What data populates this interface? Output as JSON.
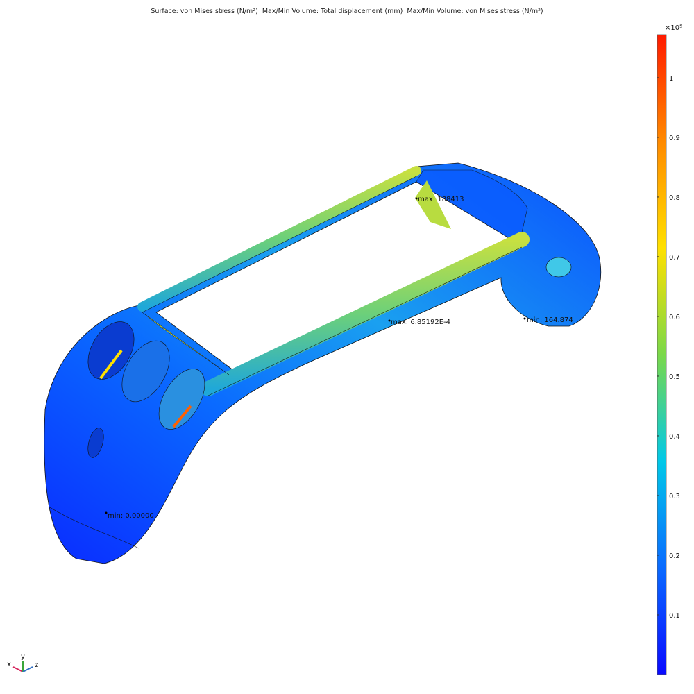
{
  "title": {
    "surface": "Surface: von Mises stress (N/m²)",
    "maxmin1": "Max/Min Volume: Total displacement (mm)",
    "maxmin2": "Max/Min Volume: von Mises stress (N/m²)"
  },
  "annotations": [
    {
      "id": "stress-max",
      "text": "max: 188413"
    },
    {
      "id": "disp-max",
      "text": "max: 6.85192E-4"
    },
    {
      "id": "stress-min",
      "text": "min: 164.874"
    },
    {
      "id": "disp-min",
      "text": "min: 0.00000"
    }
  ],
  "axes_triad": {
    "x": "x",
    "y": "y",
    "z": "z",
    "colors": {
      "x": "#d6245c",
      "y": "#3aa63a",
      "z": "#2f6fc4"
    }
  },
  "chart_data": {
    "type": "heatmap",
    "plot": "3D surface plot",
    "quantity": "von Mises stress (N/m²)",
    "colormap": "rainbow",
    "colorbar": {
      "exponent_label": "×10⁵",
      "range": [
        0,
        1.072
      ],
      "ticks": [
        0.1,
        0.2,
        0.3,
        0.4,
        0.5,
        0.6,
        0.7,
        0.8,
        0.9,
        1
      ],
      "tick_labels": [
        "0.1",
        "0.2",
        "0.3",
        "0.4",
        "0.5",
        "0.6",
        "0.7",
        "0.8",
        "0.9",
        "1"
      ],
      "colors": [
        "#0a0aff",
        "#0a6aff",
        "#00c8e8",
        "#7ad84a",
        "#ffe000",
        "#ff8a00",
        "#ff1a00"
      ]
    }
  }
}
